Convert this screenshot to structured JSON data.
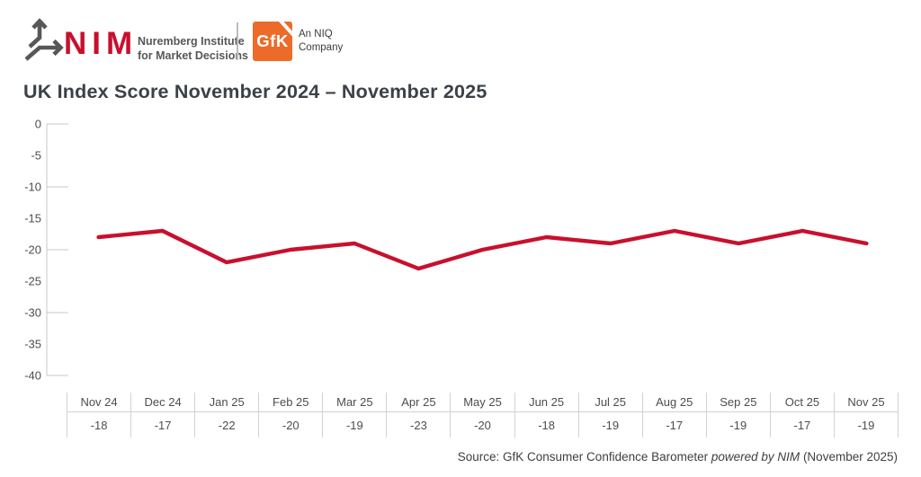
{
  "header": {
    "nim_logo_text": "NIM",
    "nim_tagline_line1": "Nuremberg Institute",
    "nim_tagline_line2": "for Market Decisions",
    "gfk_logo_text": "GfK",
    "niq_line1": "An NIQ",
    "niq_line2": "Company"
  },
  "title": "UK Index Score November 2024 – November 2025",
  "chart_data": {
    "type": "line",
    "title": "UK Index Score November 2024 – November 2025",
    "categories": [
      "Nov 24",
      "Dec 24",
      "Jan 25",
      "Feb 25",
      "Mar 25",
      "Apr 25",
      "May 25",
      "Jun 25",
      "Jul 25",
      "Aug 25",
      "Sep 25",
      "Oct 25",
      "Nov 25"
    ],
    "values": [
      -18,
      -17,
      -22,
      -20,
      -19,
      -23,
      -20,
      -18,
      -19,
      -17,
      -19,
      -17,
      -19
    ],
    "xlabel": "",
    "ylabel": "",
    "ylim": [
      -40,
      0
    ],
    "ytick_step": 5,
    "ytick_labels": [
      "0",
      "-5",
      "-10",
      "-15",
      "-20",
      "-25",
      "-30",
      "-35",
      "-40"
    ],
    "tick_stub_every": 10,
    "grid": false,
    "legend": "none",
    "line_color": "#C8102E",
    "axis_color": "#c9c9c9",
    "label_color": "#4d4d4d",
    "data_table_shown": true
  },
  "source": {
    "prefix": "Source: GfK Consumer Confidence Barometer ",
    "italic": "powered by NIM",
    "suffix": " (November 2025)"
  },
  "colors": {
    "accent_red": "#C8102E",
    "gfk_orange": "#EC6B29",
    "title_text": "#3b4148",
    "gray_text": "#575756",
    "icon_gray": "#575756"
  }
}
